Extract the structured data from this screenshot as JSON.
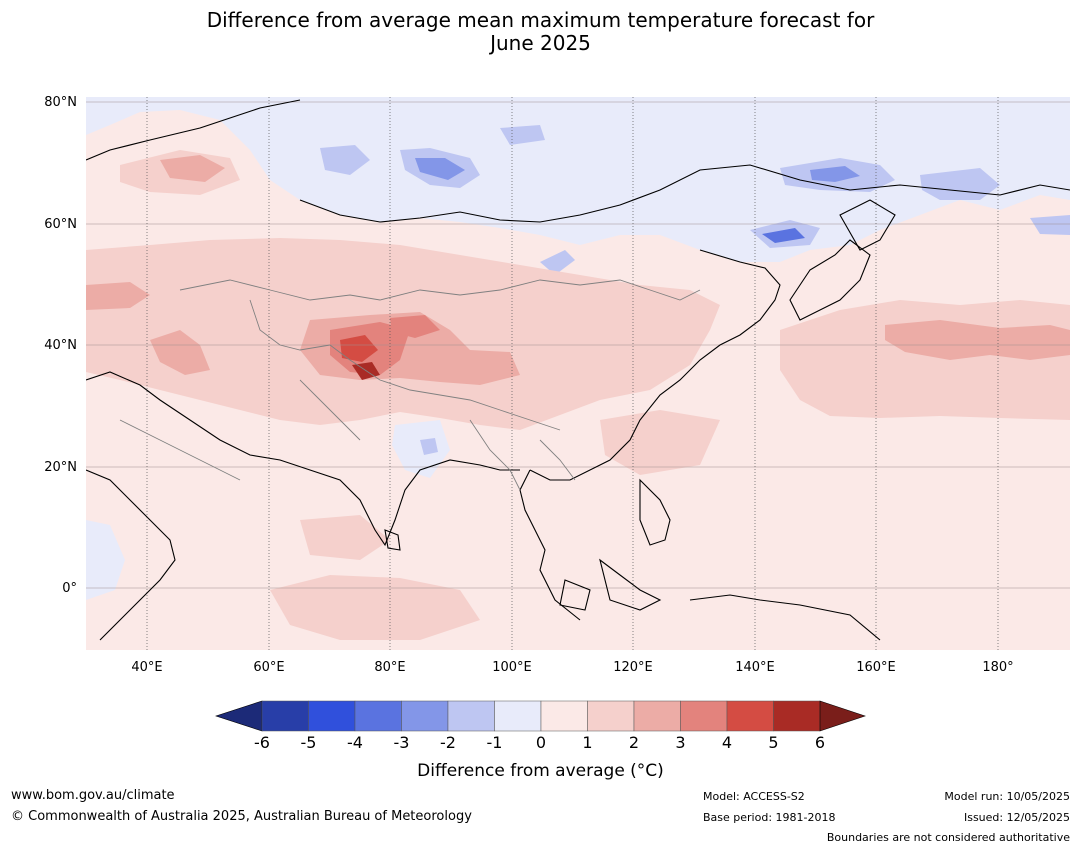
{
  "title": {
    "line1": "Difference from average mean maximum temperature forecast for",
    "line2": "June 2025"
  },
  "map": {
    "lat_labels": [
      "80°N",
      "60°N",
      "40°N",
      "20°N",
      "0°"
    ],
    "lon_labels": [
      "40°E",
      "60°E",
      "80°E",
      "100°E",
      "120°E",
      "140°E",
      "160°E",
      "180°"
    ],
    "colors": {
      "ocean_base": "#fbe9e7",
      "land_base": "#fbe9e7",
      "coast": "#000000",
      "border": "#808080",
      "grid": "#a09090"
    }
  },
  "colorbar": {
    "ticks": [
      "-6",
      "-5",
      "-4",
      "-3",
      "-2",
      "-1",
      "0",
      "1",
      "2",
      "3",
      "4",
      "5",
      "6"
    ],
    "colors": [
      "#283ea8",
      "#3050dc",
      "#5a73e0",
      "#8396e8",
      "#bec6f2",
      "#e8ebfa",
      "#fbe9e7",
      "#f5d0cc",
      "#ecaca6",
      "#e3837d",
      "#d44c43",
      "#a92b25"
    ],
    "under_color": "#1c2a78",
    "over_color": "#7a1e1a",
    "label": "Difference from average (°C)"
  },
  "footer": {
    "website": "www.bom.gov.au/climate",
    "copyright": "© Commonwealth of Australia 2025, Australian Bureau of Meteorology",
    "model": "Model: ACCESS-S2",
    "base_period": "Base period: 1981-2018",
    "model_run": "Model run: 10/05/2025",
    "issued": "Issued: 12/05/2025",
    "disclaimer": "Boundaries are not considered authoritative"
  }
}
